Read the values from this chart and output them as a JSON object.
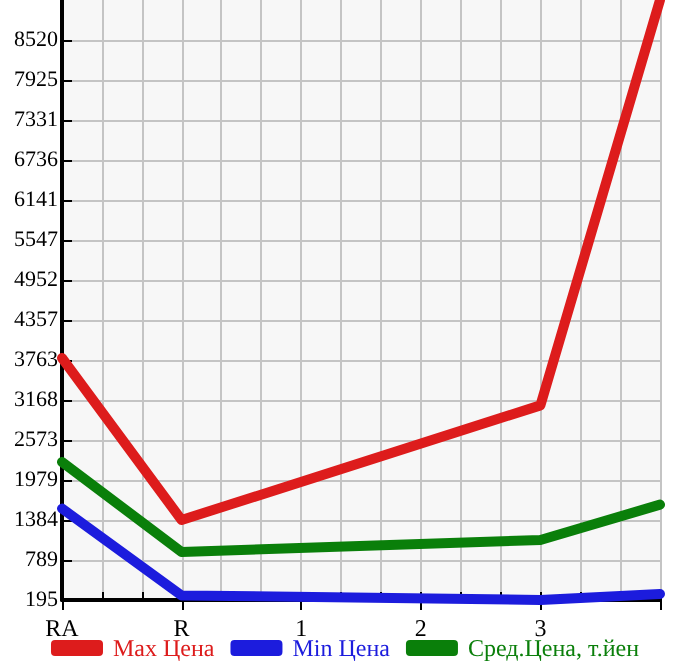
{
  "chart_data": {
    "type": "line",
    "categories": [
      "RA",
      "R",
      "1",
      "2",
      "3",
      null
    ],
    "series": [
      {
        "name": "Max Цена",
        "color": "#dd1c1c",
        "values": [
          3792,
          1384,
          null,
          null,
          3088,
          9114
        ]
      },
      {
        "name": "Min Цена",
        "color": "#1c1cdd",
        "values": [
          1554,
          263,
          null,
          null,
          195,
          284
        ]
      },
      {
        "name": "Сред.Цена, т.йен",
        "color": "#0a7f0a",
        "values": [
          2246,
          909,
          null,
          null,
          1087,
          1613
        ]
      }
    ],
    "ylim": [
      195,
      9114
    ],
    "yticks": [
      195,
      789,
      1384,
      1979,
      2573,
      3168,
      3763,
      4357,
      4952,
      5547,
      6141,
      6736,
      7331,
      7925,
      8520
    ],
    "grid": true,
    "legend": "bottom",
    "marker": "none",
    "line_style": "solid"
  }
}
